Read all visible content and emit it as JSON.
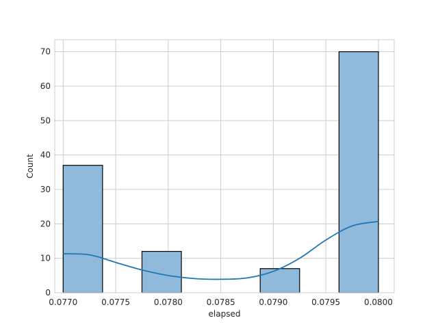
{
  "chart_data": {
    "type": "bar",
    "subtype": "histogram-with-kde",
    "xlabel": "elapsed",
    "ylabel": "Count",
    "xlim": [
      0.07692,
      0.08015
    ],
    "ylim": [
      0,
      73.5
    ],
    "grid": true,
    "x_ticks": [
      "0.0770",
      "0.0775",
      "0.0780",
      "0.0785",
      "0.0790",
      "0.0795",
      "0.0800"
    ],
    "y_ticks": [
      "0",
      "10",
      "20",
      "30",
      "40",
      "50",
      "60",
      "70"
    ],
    "bins": [
      {
        "start": 0.077,
        "end": 0.077375,
        "count": 37
      },
      {
        "start": 0.077375,
        "end": 0.07775,
        "count": 0
      },
      {
        "start": 0.07775,
        "end": 0.078125,
        "count": 12
      },
      {
        "start": 0.078125,
        "end": 0.0785,
        "count": 0
      },
      {
        "start": 0.0785,
        "end": 0.078875,
        "count": 0
      },
      {
        "start": 0.078875,
        "end": 0.07925,
        "count": 7
      },
      {
        "start": 0.07925,
        "end": 0.079625,
        "count": 0
      },
      {
        "start": 0.079625,
        "end": 0.08,
        "count": 70
      }
    ],
    "kde": {
      "x": [
        0.077,
        0.07725,
        0.0775,
        0.07775,
        0.078,
        0.07825,
        0.0785,
        0.07875,
        0.079,
        0.07925,
        0.0795,
        0.07975,
        0.08
      ],
      "y": [
        11.3,
        11.0,
        8.8,
        6.6,
        5.0,
        4.1,
        3.9,
        4.3,
        6.2,
        10.0,
        15.3,
        19.4,
        20.7
      ]
    },
    "colors": {
      "bar_fill": "#8fbadb",
      "bar_edge": "#000000",
      "kde_line": "#1f77b4",
      "grid": "#cccccc",
      "frame": "#cccccc"
    }
  }
}
